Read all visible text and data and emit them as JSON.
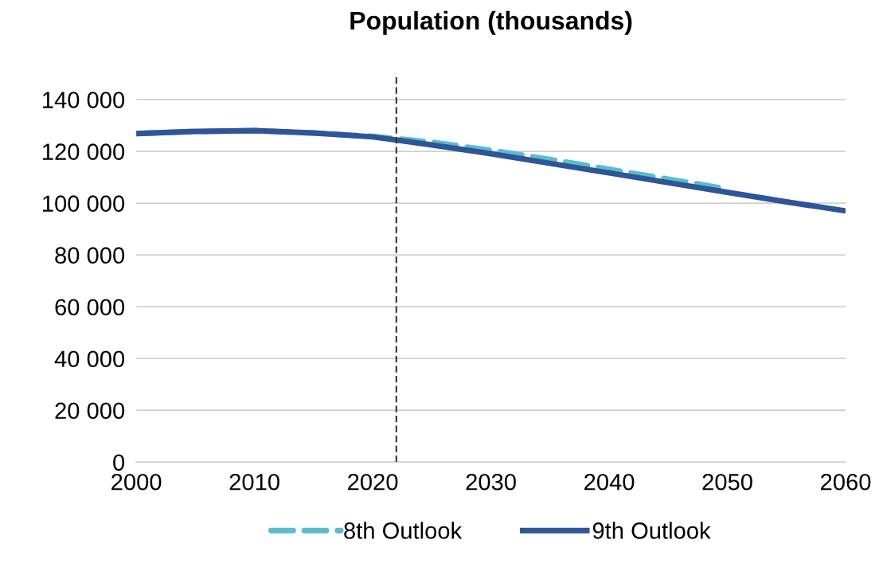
{
  "chart_data": {
    "type": "line",
    "title": "Population (thousands)",
    "x": [
      2000,
      2005,
      2010,
      2015,
      2020,
      2025,
      2030,
      2035,
      2040,
      2045,
      2050,
      2055,
      2060
    ],
    "series": [
      {
        "name": "8th Outlook",
        "color": "#5bbccc",
        "line_style": "dashed",
        "x": [
          2000,
          2005,
          2010,
          2015,
          2020,
          2025,
          2030,
          2035,
          2040,
          2045,
          2050
        ],
        "values": [
          126900,
          127700,
          128000,
          127100,
          125800,
          123600,
          120400,
          116900,
          113100,
          109300,
          105500
        ]
      },
      {
        "name": "9th Outlook",
        "color": "#2e5597",
        "line_style": "solid",
        "values": [
          126900,
          127700,
          128000,
          127100,
          125600,
          122500,
          119100,
          115400,
          111700,
          107900,
          104200,
          100500,
          97000
        ]
      }
    ],
    "xlim": [
      2000,
      2060
    ],
    "xticks": [
      2000,
      2010,
      2020,
      2030,
      2040,
      2050,
      2060
    ],
    "ylim": [
      0,
      150000
    ],
    "yticks": [
      {
        "value": 0,
        "label": "0"
      },
      {
        "value": 20000,
        "label": "20 000"
      },
      {
        "value": 40000,
        "label": "40 000"
      },
      {
        "value": 60000,
        "label": "60 000"
      },
      {
        "value": 80000,
        "label": "80 000"
      },
      {
        "value": 100000,
        "label": "100 000"
      },
      {
        "value": 120000,
        "label": "120 000"
      },
      {
        "value": 140000,
        "label": "140 000"
      }
    ],
    "ref_lines": [
      {
        "axis": "x",
        "value": 2022,
        "label": null,
        "color": "#333333",
        "line_style": "dashed"
      }
    ],
    "grid": "y",
    "legend": "bottom",
    "marker": "none"
  }
}
